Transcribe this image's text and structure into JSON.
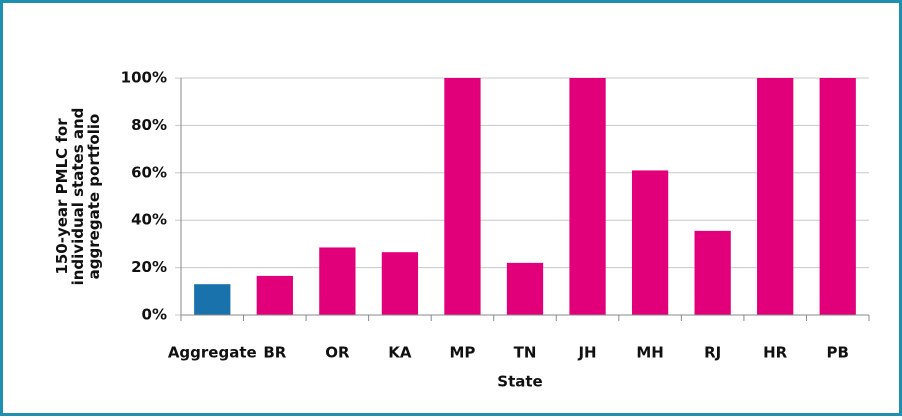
{
  "chart_data": {
    "type": "bar",
    "categories": [
      "Aggregate",
      "BR",
      "OR",
      "KA",
      "MP",
      "TN",
      "JH",
      "MH",
      "RJ",
      "HR",
      "PB"
    ],
    "values": [
      13,
      16.5,
      28.5,
      26.5,
      100,
      22,
      100,
      61,
      35.5,
      100,
      100
    ],
    "colors": [
      "#1a72ad",
      "#e2007a",
      "#e2007a",
      "#e2007a",
      "#e2007a",
      "#e2007a",
      "#e2007a",
      "#e2007a",
      "#e2007a",
      "#e2007a",
      "#e2007a"
    ],
    "x_label": "State",
    "y_label": [
      "150-year PMLC for",
      "individual states and",
      "aggregate portfolio"
    ],
    "ylim": [
      0,
      100
    ],
    "yticks": [
      {
        "value": 0,
        "label": "0%"
      },
      {
        "value": 20,
        "label": "20%"
      },
      {
        "value": 40,
        "label": "40%"
      },
      {
        "value": 60,
        "label": "60%"
      },
      {
        "value": 80,
        "label": "80%"
      },
      {
        "value": 100,
        "label": "100%"
      }
    ],
    "grid": true
  }
}
